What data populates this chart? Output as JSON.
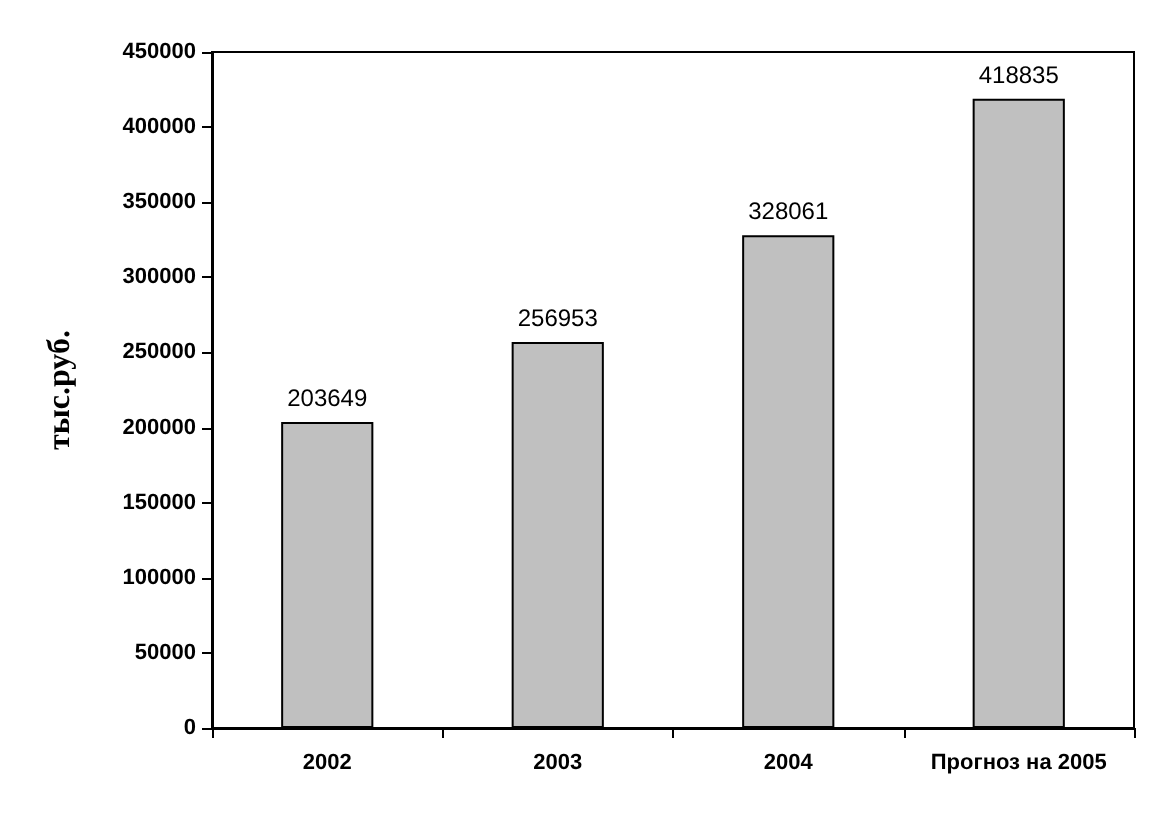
{
  "chart_data": {
    "type": "bar",
    "ylabel": "тыс.руб.",
    "categories": [
      "2002",
      "2003",
      "2004",
      "Прогноз на 2005"
    ],
    "values": [
      203649,
      256953,
      328061,
      418835
    ],
    "color": "#c0c0c0",
    "ylim": [
      0,
      450000
    ],
    "yticks": [
      0,
      50000,
      100000,
      150000,
      200000,
      250000,
      300000,
      350000,
      400000,
      450000
    ],
    "grid": false,
    "data_labels": true
  }
}
